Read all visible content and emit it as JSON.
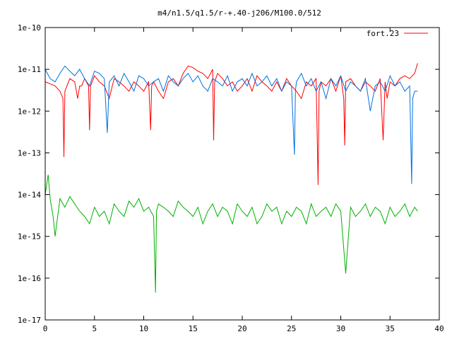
{
  "chart_data": {
    "type": "line",
    "title": "m4/n1.5/q1.5/r-+.40-j206/M100.0/512",
    "xlabel": "",
    "ylabel": "",
    "xlim": [
      0,
      40
    ],
    "ylim": [
      1e-17,
      1e-10
    ],
    "yscale": "log",
    "x_ticks": [
      0,
      5,
      10,
      15,
      20,
      25,
      30,
      35,
      40
    ],
    "x_tick_labels": [
      "0",
      "5",
      "10",
      "15",
      "20",
      "25",
      "30",
      "35",
      "40"
    ],
    "y_ticks": [
      1e-17,
      1e-16,
      1e-15,
      1e-14,
      1e-13,
      1e-12,
      1e-11,
      1e-10
    ],
    "y_tick_labels": [
      "1e-17",
      "1e-16",
      "1e-15",
      "1e-14",
      "1e-13",
      "1e-12",
      "1e-11",
      "1e-10"
    ],
    "grid": false,
    "legend": {
      "position": "top-right",
      "entries": [
        "fort.23"
      ]
    },
    "series": [
      {
        "name": "fort.23",
        "color": "#ff0000",
        "x": [
          0,
          0.5,
          1,
          1.5,
          1.8,
          1.9,
          2,
          2.5,
          3,
          3.3,
          3.5,
          3.7,
          4,
          4.4,
          4.5,
          4.6,
          5,
          5.5,
          6,
          6.5,
          7,
          7.5,
          8,
          8.5,
          9,
          9.5,
          10,
          10.5,
          10.7,
          10.8,
          11,
          11.5,
          12,
          12.5,
          13,
          13.5,
          14,
          14.5,
          15,
          15.5,
          16,
          16.5,
          17,
          17.1,
          17.2,
          17.5,
          18,
          18.5,
          19,
          19.5,
          20,
          20.5,
          21,
          21.5,
          22,
          22.5,
          23,
          23.5,
          24,
          24.5,
          25,
          25.5,
          26,
          26.5,
          27,
          27.5,
          27.7,
          27.8,
          28,
          28.5,
          29,
          29.5,
          30,
          30.3,
          30.4,
          30.5,
          31,
          31.5,
          32,
          32.5,
          33,
          33.5,
          34,
          34.3,
          34.5,
          34.7,
          35,
          35.5,
          36,
          36.5,
          37,
          37.5,
          37.8
        ],
        "y": [
          5e-12,
          4.5e-12,
          4e-12,
          3e-12,
          2e-12,
          8e-14,
          3e-12,
          6e-12,
          5e-12,
          2e-12,
          4e-12,
          4e-12,
          6e-12,
          4e-12,
          3.5e-13,
          4e-12,
          7e-12,
          5e-12,
          4e-12,
          2e-12,
          6e-12,
          5e-12,
          4e-12,
          3e-12,
          5e-12,
          4e-12,
          3e-12,
          5e-12,
          3.5e-13,
          4e-12,
          5e-12,
          3e-12,
          2e-12,
          5e-12,
          6e-12,
          4e-12,
          8e-12,
          1.2e-11,
          1.1e-11,
          9e-12,
          8e-12,
          6e-12,
          1e-11,
          2e-13,
          5e-12,
          8e-12,
          6e-12,
          4e-12,
          5e-12,
          3e-12,
          4e-12,
          6e-12,
          3e-12,
          7e-12,
          5e-12,
          4e-12,
          3e-12,
          5e-12,
          3e-12,
          6e-12,
          4e-12,
          3e-12,
          2e-12,
          5e-12,
          4e-12,
          6e-12,
          1.7e-14,
          3e-12,
          5e-12,
          4e-12,
          6e-12,
          3e-12,
          7e-12,
          2e-12,
          1.5e-13,
          5e-12,
          6e-12,
          4e-12,
          3e-12,
          5e-12,
          4e-12,
          3e-12,
          6e-12,
          2e-13,
          5e-12,
          2e-12,
          5e-12,
          4e-12,
          6e-12,
          7e-12,
          6e-12,
          8e-12,
          1.4e-11
        ]
      },
      {
        "color": "#0070e0",
        "x": [
          0,
          0.5,
          1,
          1.5,
          2,
          2.5,
          3,
          3.5,
          4,
          4.5,
          5,
          5.5,
          6,
          6.3,
          6.5,
          7,
          7.5,
          8,
          8.5,
          9,
          9.5,
          10,
          10.5,
          11,
          11.5,
          12,
          12.5,
          13,
          13.5,
          14,
          14.5,
          15,
          15.5,
          16,
          16.5,
          17,
          17.5,
          18,
          18.5,
          19,
          19.5,
          20,
          20.5,
          21,
          21.5,
          22,
          22.5,
          23,
          23.5,
          24,
          24.5,
          25,
          25.3,
          25.4,
          25.5,
          26,
          26.5,
          27,
          27.5,
          28,
          28.5,
          29,
          29.5,
          30,
          30.5,
          31,
          31.5,
          32,
          32.5,
          33,
          33.5,
          34,
          34.5,
          35,
          35.5,
          36,
          36.5,
          37,
          37.2,
          37.3,
          37.5,
          37.8
        ],
        "y": [
          1e-11,
          6e-12,
          5e-12,
          8e-12,
          1.2e-11,
          9e-12,
          7e-12,
          1e-11,
          6e-12,
          4e-12,
          9e-12,
          8e-12,
          6e-12,
          3e-13,
          5e-12,
          7e-12,
          4e-12,
          8e-12,
          5e-12,
          3e-12,
          7e-12,
          6e-12,
          4e-12,
          5e-12,
          6e-12,
          3e-12,
          7e-12,
          5e-12,
          4e-12,
          6e-12,
          8e-12,
          5e-12,
          7e-12,
          4e-12,
          3e-12,
          6e-12,
          5e-12,
          4e-12,
          7e-12,
          3e-12,
          5e-12,
          6e-12,
          4e-12,
          8e-12,
          4e-12,
          5e-12,
          7e-12,
          4e-12,
          6e-12,
          3e-12,
          5e-12,
          4e-12,
          9e-14,
          3e-12,
          5e-12,
          8e-12,
          4e-12,
          6e-12,
          3e-12,
          5e-12,
          2e-12,
          6e-12,
          4e-12,
          7e-12,
          3e-12,
          5e-12,
          4e-12,
          3e-12,
          6e-12,
          1e-12,
          4e-12,
          5e-12,
          3e-12,
          7e-12,
          4e-12,
          5e-12,
          3e-12,
          4e-12,
          1.8e-14,
          2e-12,
          3e-12,
          3e-12
        ]
      },
      {
        "color": "#00b000",
        "x": [
          0,
          0.3,
          0.5,
          0.8,
          1,
          1.5,
          2,
          2.5,
          3,
          3.5,
          4,
          4.5,
          5,
          5.5,
          6,
          6.5,
          7,
          7.5,
          8,
          8.5,
          9,
          9.5,
          10,
          10.5,
          11,
          11.2,
          11.3,
          11.5,
          12,
          12.5,
          13,
          13.5,
          14,
          14.5,
          15,
          15.5,
          16,
          16.5,
          17,
          17.5,
          18,
          18.5,
          19,
          19.5,
          20,
          20.5,
          21,
          21.5,
          22,
          22.5,
          23,
          23.5,
          24,
          24.5,
          25,
          25.5,
          26,
          26.5,
          27,
          27.5,
          28,
          28.5,
          29,
          29.5,
          30,
          30.5,
          31,
          31.5,
          32,
          32.5,
          33,
          33.5,
          34,
          34.5,
          35,
          35.5,
          36,
          36.5,
          37,
          37.5,
          37.8
        ],
        "y": [
          1e-14,
          3e-14,
          8e-15,
          3e-15,
          1e-15,
          8e-15,
          5e-15,
          9e-15,
          6e-15,
          4e-15,
          3e-15,
          2e-15,
          5e-15,
          3e-15,
          4e-15,
          2e-15,
          6e-15,
          4e-15,
          3e-15,
          7e-15,
          5e-15,
          8e-15,
          4e-15,
          5e-15,
          3e-15,
          4.5e-17,
          4e-15,
          6e-15,
          5e-15,
          4e-15,
          3e-15,
          7e-15,
          5e-15,
          4e-15,
          3e-15,
          5e-15,
          2e-15,
          4e-15,
          6e-15,
          3e-15,
          5e-15,
          4e-15,
          2e-15,
          6e-15,
          4e-15,
          3e-15,
          5e-15,
          2e-15,
          3e-15,
          6e-15,
          4e-15,
          5e-15,
          2e-15,
          4e-15,
          3e-15,
          5e-15,
          4e-15,
          2e-15,
          6e-15,
          3e-15,
          4e-15,
          5e-15,
          3e-15,
          6e-15,
          4e-15,
          1.3e-16,
          5e-15,
          3e-15,
          4e-15,
          6e-15,
          3e-15,
          5e-15,
          4e-15,
          2e-15,
          5e-15,
          3e-15,
          4e-15,
          6e-15,
          3e-15,
          5e-15,
          4e-15
        ]
      }
    ]
  }
}
